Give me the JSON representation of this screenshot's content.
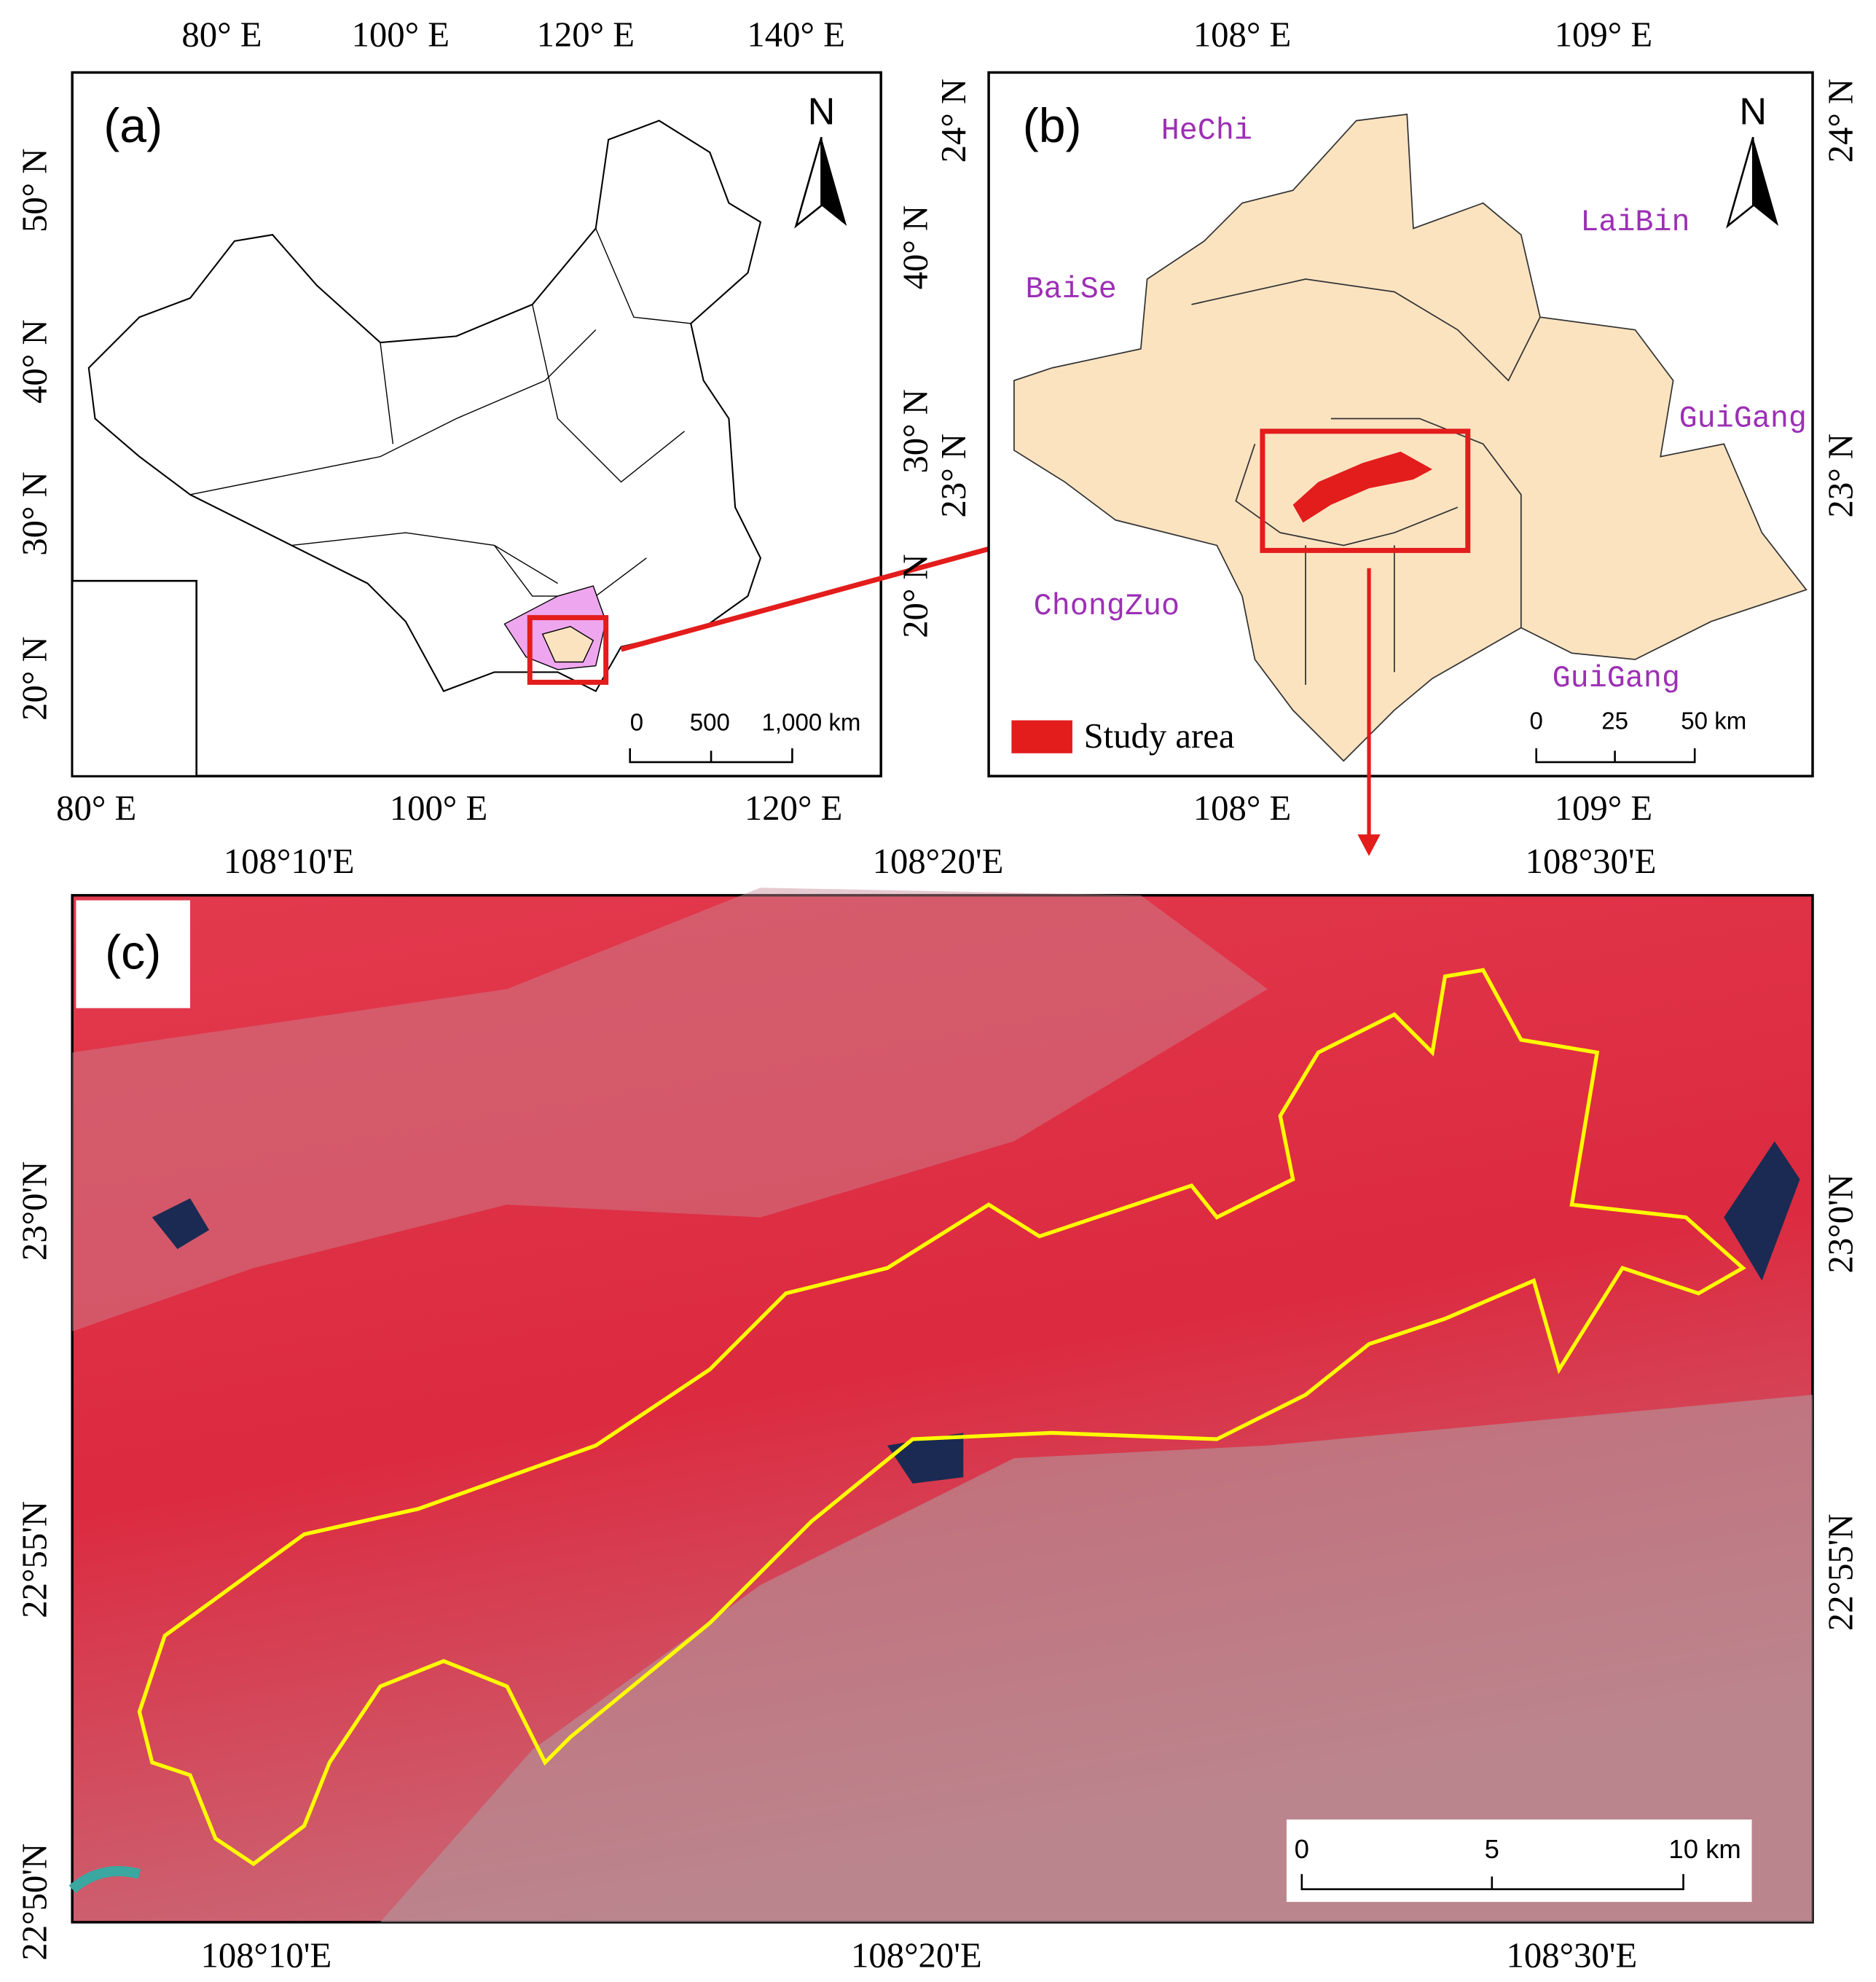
{
  "panels": {
    "a": {
      "label": "(a)",
      "north": "N",
      "top_ticks": [
        "80° E",
        "100° E",
        "120° E",
        "140° E"
      ],
      "bottom_ticks": [
        "80° E",
        "100° E",
        "120° E"
      ],
      "left_ticks": [
        "50° N",
        "40° N",
        "30° N",
        "20° N"
      ],
      "right_ticks": [
        "40° N",
        "30° N",
        "20° N"
      ],
      "scale": [
        "0",
        "500",
        "1,000 km"
      ]
    },
    "b": {
      "label": "(b)",
      "north": "N",
      "top_ticks": [
        "108° E",
        "109° E"
      ],
      "bottom_ticks": [
        "108° E",
        "109° E"
      ],
      "left_ticks": [
        "24° N",
        "23° N"
      ],
      "right_ticks": [
        "24° N",
        "23° N"
      ],
      "places": [
        "HeChi",
        "BaiSe",
        "LaiBin",
        "GuiGang",
        "ChongZuo",
        "GuiGang"
      ],
      "legend": "Study area",
      "scale": [
        "0",
        "25",
        "50 km"
      ]
    },
    "c": {
      "label": "(c)",
      "top_ticks": [
        "108°10'E",
        "108°20'E",
        "108°30'E"
      ],
      "bottom_ticks": [
        "108°10'E",
        "108°20'E",
        "108°30'E"
      ],
      "left_ticks": [
        "23°0'N",
        "22°55'N",
        "22°50'N"
      ],
      "right_ticks": [
        "23°0'N",
        "22°55'N"
      ],
      "scale": [
        "0",
        "5",
        "10 km"
      ]
    }
  }
}
